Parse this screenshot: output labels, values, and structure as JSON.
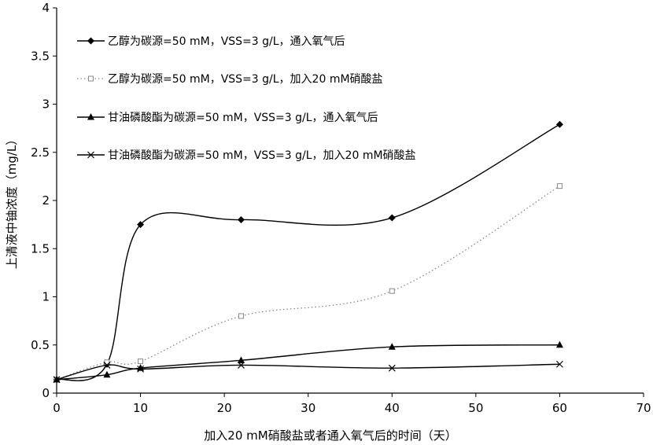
{
  "chart_data": {
    "type": "line",
    "title": "",
    "xlabel": "加入20 mM硝酸盐或者通入氧气后的时间（天）",
    "ylabel": "上清液中铀浓度（mg/L）",
    "xlim": [
      0,
      70
    ],
    "ylim": [
      0,
      4
    ],
    "x_ticks": [
      0,
      10,
      20,
      30,
      40,
      50,
      60,
      70
    ],
    "y_ticks": [
      0,
      0.5,
      1,
      1.5,
      2,
      2.5,
      3,
      3.5,
      4
    ],
    "x_tick_labels": [
      "0",
      "10",
      "20",
      "30",
      "40",
      "50",
      "60",
      "70"
    ],
    "y_tick_labels": [
      "0",
      "0.5",
      "1",
      "1.5",
      "2",
      "2.5",
      "3",
      "3.5",
      "4"
    ],
    "grid": false,
    "legend_position": "top-left",
    "series": [
      {
        "name": "乙醇为碳源=50 mM，VSS=3 g/L，通入氧气后",
        "marker": "diamond",
        "line_style": "solid",
        "color": "#000000",
        "x": [
          0,
          6,
          10,
          22,
          40,
          60
        ],
        "y": [
          0.14,
          0.3,
          1.75,
          1.8,
          1.82,
          2.79
        ]
      },
      {
        "name": "乙醇为碳源=50 mM，VSS=3 g/L，加入20 mM硝酸盐",
        "marker": "square-open",
        "line_style": "dotted",
        "color": "#888888",
        "x": [
          0,
          6,
          10,
          22,
          40,
          60
        ],
        "y": [
          0.14,
          0.32,
          0.33,
          0.8,
          1.06,
          2.15
        ]
      },
      {
        "name": "甘油磷酸酯为碳源=50 mM，VSS=3 g/L，通入氧气后",
        "marker": "triangle",
        "line_style": "solid",
        "color": "#000000",
        "x": [
          0,
          6,
          10,
          22,
          40,
          60
        ],
        "y": [
          0.14,
          0.19,
          0.26,
          0.34,
          0.48,
          0.5
        ]
      },
      {
        "name": "甘油磷酸酯为碳源=50 mM，VSS=3 g/L，加入20 mM硝酸盐",
        "marker": "x",
        "line_style": "solid",
        "color": "#000000",
        "x": [
          0,
          6,
          10,
          22,
          40,
          60
        ],
        "y": [
          0.14,
          0.29,
          0.25,
          0.29,
          0.26,
          0.3
        ]
      }
    ]
  }
}
